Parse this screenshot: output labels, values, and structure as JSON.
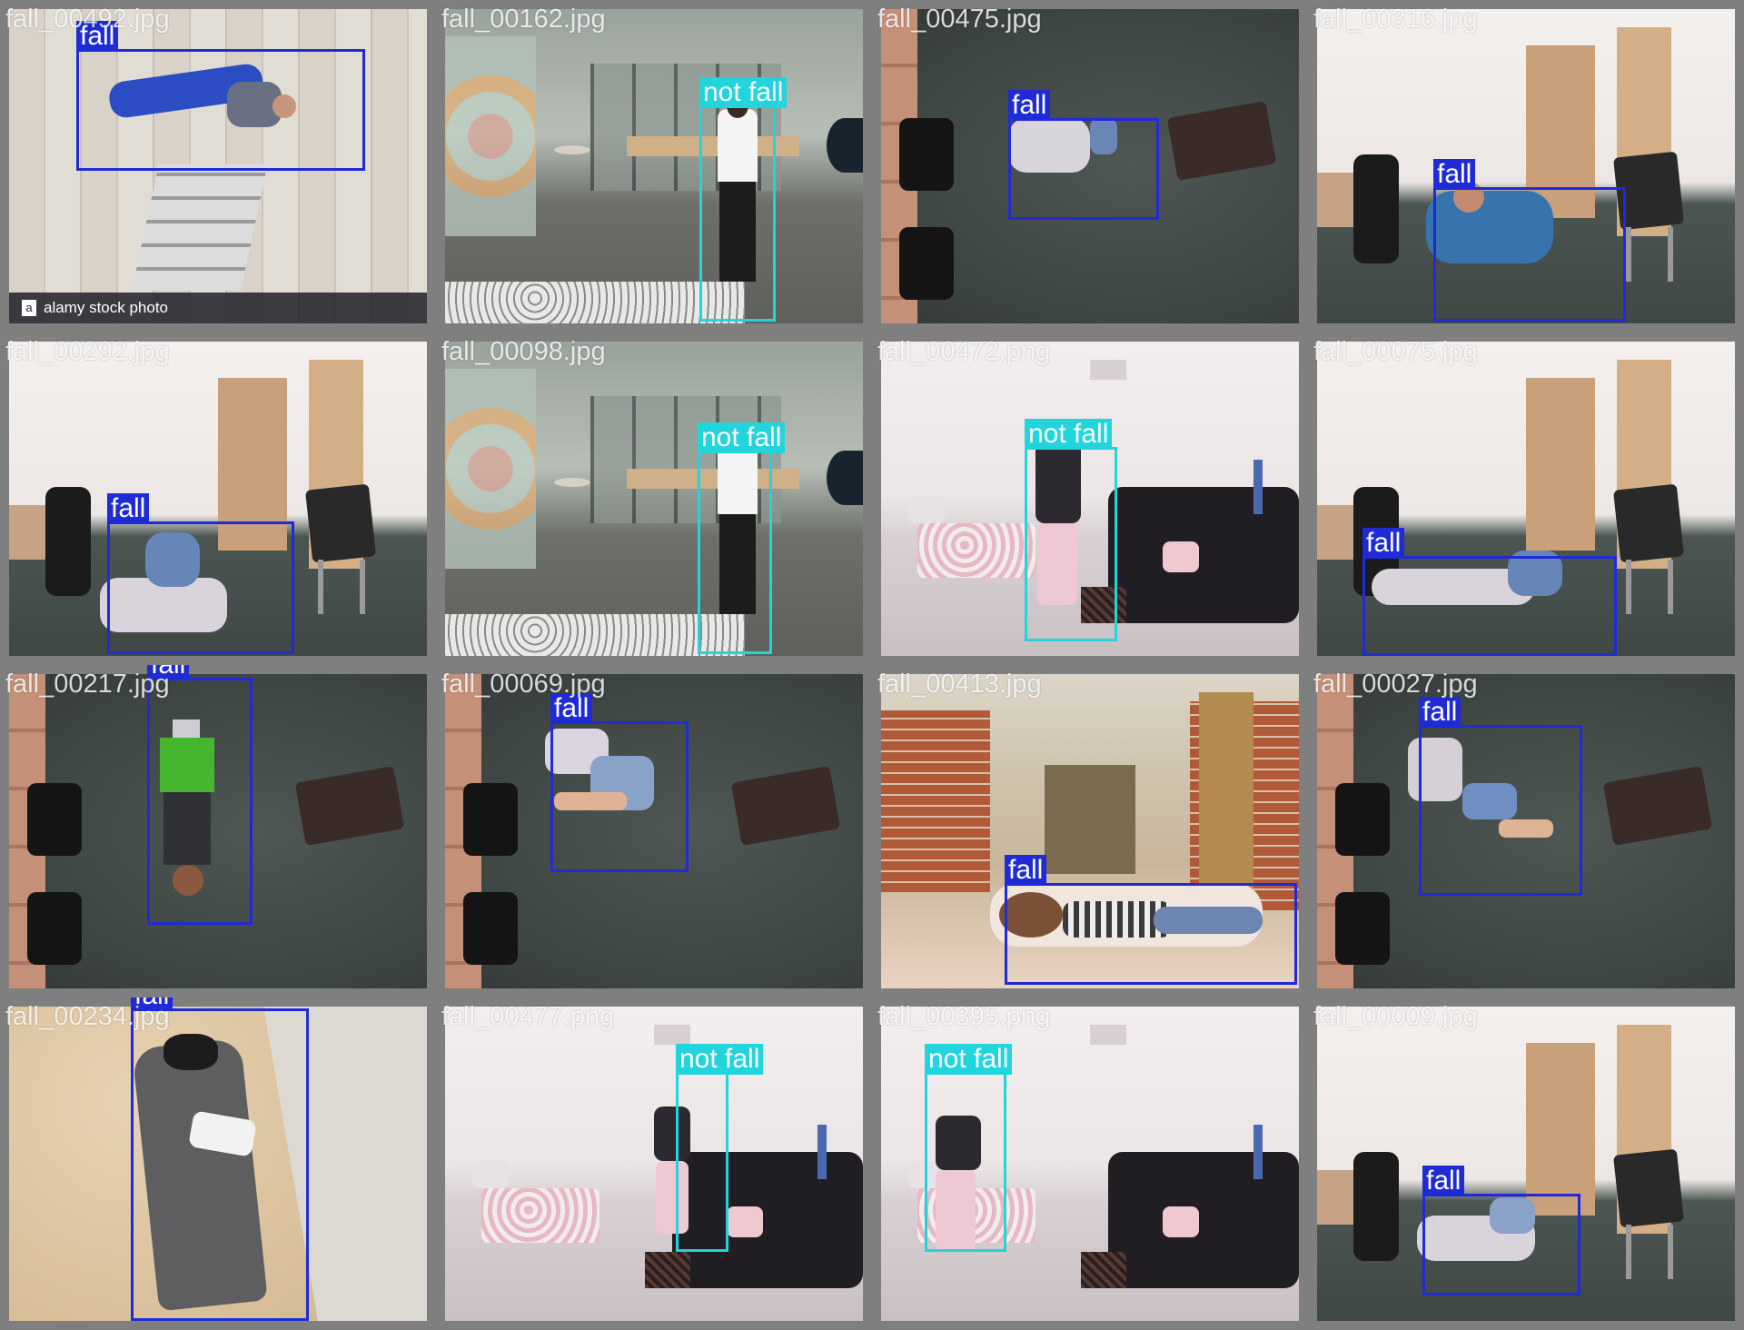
{
  "colors": {
    "fall": "#1f2bd6",
    "not_fall": "#22d4dc",
    "tile_border": "#7f7f7f"
  },
  "labels": {
    "fall": "fall",
    "not_fall": "not fall"
  },
  "watermark_text": "alamy stock photo",
  "tiles": [
    {
      "file": "fall_00492.jpg",
      "scene": "wood",
      "boxes": [
        {
          "cls": "fall"
        }
      ]
    },
    {
      "file": "fall_00162.jpg",
      "scene": "office",
      "boxes": [
        {
          "cls": "not_fall"
        }
      ]
    },
    {
      "file": "fall_00475.jpg",
      "scene": "topdown",
      "boxes": [
        {
          "cls": "fall"
        }
      ]
    },
    {
      "file": "fall_00316.jpg",
      "scene": "room",
      "boxes": [
        {
          "cls": "fall"
        }
      ]
    },
    {
      "file": "fall_00292.jpg",
      "scene": "room",
      "boxes": [
        {
          "cls": "fall"
        }
      ]
    },
    {
      "file": "fall_00098.jpg",
      "scene": "office",
      "boxes": [
        {
          "cls": "not_fall"
        }
      ]
    },
    {
      "file": "fall_00472.png",
      "scene": "living",
      "boxes": [
        {
          "cls": "not_fall"
        }
      ]
    },
    {
      "file": "fall_00075.jpg",
      "scene": "room",
      "boxes": [
        {
          "cls": "fall"
        }
      ]
    },
    {
      "file": "fall_00217.jpg",
      "scene": "topdown",
      "boxes": [
        {
          "cls": "fall"
        }
      ]
    },
    {
      "file": "fall_00069.jpg",
      "scene": "topdown",
      "boxes": [
        {
          "cls": "fall"
        }
      ]
    },
    {
      "file": "fall_00413.jpg",
      "scene": "hallway",
      "boxes": [
        {
          "cls": "fall"
        }
      ]
    },
    {
      "file": "fall_00027.jpg",
      "scene": "topdown",
      "boxes": [
        {
          "cls": "fall"
        }
      ]
    },
    {
      "file": "fall_00234.jpg",
      "scene": "floor",
      "boxes": [
        {
          "cls": "fall"
        }
      ]
    },
    {
      "file": "fall_00477.png",
      "scene": "living",
      "boxes": [
        {
          "cls": "not_fall"
        }
      ]
    },
    {
      "file": "fall_00395.png",
      "scene": "living",
      "boxes": [
        {
          "cls": "not_fall"
        }
      ]
    },
    {
      "file": "fall_00009.jpg",
      "scene": "room",
      "boxes": [
        {
          "cls": "fall"
        }
      ]
    }
  ]
}
